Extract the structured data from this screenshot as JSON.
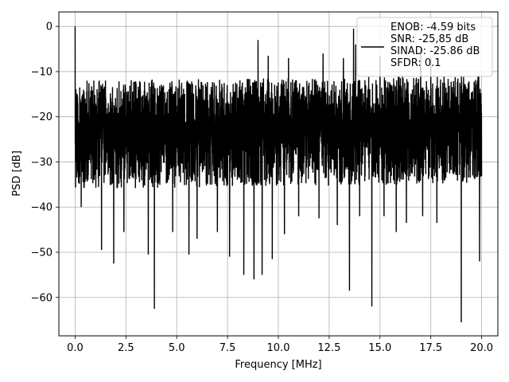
{
  "chart_data": {
    "type": "line",
    "xlabel": "Frequency [MHz]",
    "ylabel": "PSD [dB]",
    "xlim": [
      -0.8,
      20.8
    ],
    "ylim": [
      -68.5,
      3.2
    ],
    "xticks": [
      0.0,
      2.5,
      5.0,
      7.5,
      10.0,
      12.5,
      15.0,
      17.5,
      20.0
    ],
    "xtick_labels": [
      "0.0",
      "2.5",
      "5.0",
      "7.5",
      "10.0",
      "12.5",
      "15.0",
      "17.5",
      "20.0"
    ],
    "yticks": [
      0,
      -10,
      -20,
      -30,
      -40,
      -50,
      -60
    ],
    "ytick_labels": [
      "0",
      "−10",
      "−20",
      "−30",
      "−40",
      "−50",
      "−60"
    ],
    "grid": true,
    "legend_position": "top-right",
    "line_color": "#000000",
    "series": [
      {
        "name": "ENOB: -4.59 bits\nSNR: -25,85 dB\nSINAD: -25.86 dB\nSFDR: 0.1",
        "x_range": [
          0,
          20
        ],
        "noise_floor_db": [
          -35,
          -12
        ],
        "peaks": [
          {
            "x": 0.0,
            "y": 0.0
          },
          {
            "x": 13.7,
            "y": -0.5
          },
          {
            "x": 9.2,
            "y": -2.0
          },
          {
            "x": 9.0,
            "y": -3.0
          },
          {
            "x": 12.0,
            "y": -4.5
          },
          {
            "x": 13.8,
            "y": -4.0
          },
          {
            "x": 11.0,
            "y": -5.0
          },
          {
            "x": 17.0,
            "y": -5.0
          },
          {
            "x": 9.5,
            "y": -6.5
          },
          {
            "x": 12.2,
            "y": -6.0
          },
          {
            "x": 10.5,
            "y": -7.0
          },
          {
            "x": 13.2,
            "y": -7.0
          },
          {
            "x": 15.0,
            "y": -6.5
          },
          {
            "x": 17.5,
            "y": -7.0
          }
        ],
        "dips": [
          {
            "x": 0.3,
            "y": -40.0
          },
          {
            "x": 1.3,
            "y": -49.5
          },
          {
            "x": 1.9,
            "y": -52.5
          },
          {
            "x": 2.4,
            "y": -45.5
          },
          {
            "x": 3.6,
            "y": -50.5
          },
          {
            "x": 3.9,
            "y": -62.5
          },
          {
            "x": 4.8,
            "y": -45.5
          },
          {
            "x": 5.6,
            "y": -50.5
          },
          {
            "x": 6.0,
            "y": -47.0
          },
          {
            "x": 7.0,
            "y": -45.5
          },
          {
            "x": 7.6,
            "y": -51.0
          },
          {
            "x": 8.3,
            "y": -55.0
          },
          {
            "x": 8.8,
            "y": -56.0
          },
          {
            "x": 9.2,
            "y": -55.0
          },
          {
            "x": 9.7,
            "y": -51.5
          },
          {
            "x": 10.3,
            "y": -46.0
          },
          {
            "x": 11.0,
            "y": -42.0
          },
          {
            "x": 12.0,
            "y": -42.5
          },
          {
            "x": 12.9,
            "y": -44.0
          },
          {
            "x": 13.5,
            "y": -58.5
          },
          {
            "x": 14.0,
            "y": -42.0
          },
          {
            "x": 14.6,
            "y": -62.0
          },
          {
            "x": 15.2,
            "y": -42.0
          },
          {
            "x": 15.8,
            "y": -45.5
          },
          {
            "x": 16.3,
            "y": -43.5
          },
          {
            "x": 17.1,
            "y": -42.0
          },
          {
            "x": 17.8,
            "y": -43.5
          },
          {
            "x": 19.0,
            "y": -65.5
          },
          {
            "x": 19.9,
            "y": -52.0
          }
        ]
      }
    ]
  }
}
